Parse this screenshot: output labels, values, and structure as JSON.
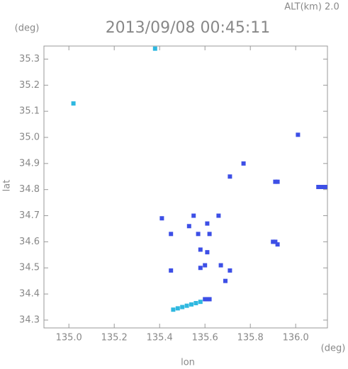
{
  "chart_data": {
    "type": "scatter",
    "annotation": "ALT(km) 2.0",
    "title": "2013/09/08 00:45:11",
    "y_unit": "(deg)",
    "x_unit": "(deg)",
    "ylabel": "lat",
    "xlabel": "lon",
    "xlim": [
      134.89,
      136.14
    ],
    "ylim": [
      34.27,
      35.35
    ],
    "xticks": [
      {
        "value": 135,
        "label": "135.0"
      },
      135.2,
      135.4,
      135.6,
      135.8,
      {
        "value": 136,
        "label": "136.0"
      }
    ],
    "yticks": [
      34.3,
      34.4,
      34.5,
      34.6,
      34.7,
      34.8,
      34.9,
      {
        "value": 35,
        "label": "35.0"
      },
      35.1,
      35.2,
      35.3
    ],
    "series": [
      {
        "color": "#3d4fe6",
        "x": [
          135.77,
          135.71,
          135.91,
          135.92,
          136.1,
          136.11,
          136.12,
          136.13,
          135.41,
          135.55,
          135.66,
          135.45,
          135.53,
          135.57,
          135.61,
          135.62,
          135.9,
          135.91,
          135.92,
          135.58,
          135.61,
          135.58,
          135.6,
          135.45,
          135.67,
          135.71,
          135.69,
          135.6,
          135.61,
          135.62,
          136.01
        ],
        "values": [
          34.9,
          34.85,
          34.83,
          34.83,
          34.81,
          34.81,
          34.81,
          34.81,
          34.69,
          34.7,
          34.7,
          34.63,
          34.66,
          34.63,
          34.67,
          34.63,
          34.6,
          34.6,
          34.59,
          34.57,
          34.56,
          34.5,
          34.51,
          34.49,
          34.51,
          34.49,
          34.45,
          34.38,
          34.38,
          34.38,
          35.01
        ]
      },
      {
        "color": "#2fb8e0",
        "x": [
          135.38,
          135.02,
          135.46,
          135.48,
          135.5,
          135.52,
          135.54,
          135.56,
          135.58
        ],
        "values": [
          35.34,
          35.13,
          34.34,
          34.345,
          34.35,
          34.355,
          34.36,
          34.365,
          34.37
        ]
      }
    ]
  }
}
